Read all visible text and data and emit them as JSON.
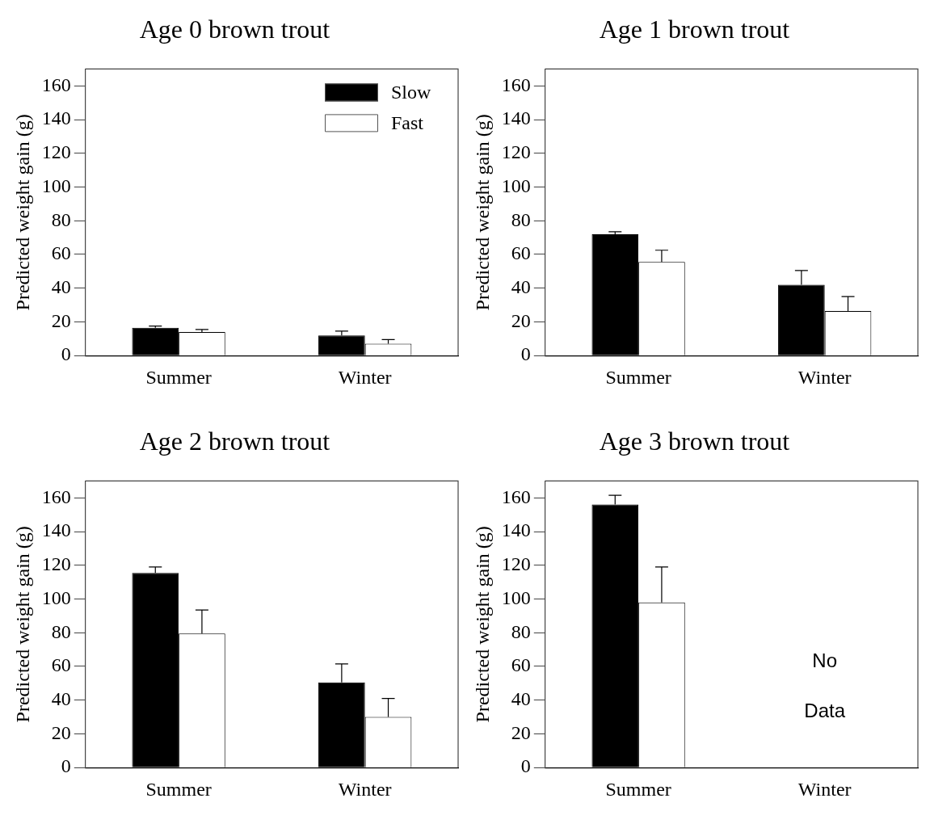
{
  "chart_data": [
    {
      "type": "bar",
      "title": "Age 0 brown trout",
      "ylabel": "Predicted weight gain (g)",
      "categories": [
        "Summer",
        "Winter"
      ],
      "ylim": [
        0,
        170
      ],
      "yticks": [
        0,
        20,
        40,
        60,
        80,
        100,
        120,
        140,
        160
      ],
      "legend": "top right",
      "series": [
        {
          "name": "Slow",
          "color": "#000000",
          "values": [
            16.5,
            12
          ],
          "errors": [
            [
              16.5,
              17.5
            ],
            [
              12,
              14.5
            ]
          ]
        },
        {
          "name": "Fast",
          "color": "#ffffff",
          "values": [
            14,
            7
          ],
          "errors": [
            [
              14,
              15.5
            ],
            [
              7,
              9.5
            ]
          ]
        }
      ]
    },
    {
      "type": "bar",
      "title": "Age 1 brown trout",
      "ylabel": "Predicted weight gain (g)",
      "categories": [
        "Summer",
        "Winter"
      ],
      "ylim": [
        0,
        170
      ],
      "yticks": [
        0,
        20,
        40,
        60,
        80,
        100,
        120,
        140,
        160
      ],
      "series": [
        {
          "color": "#000000",
          "values": [
            72,
            42
          ],
          "errors": [
            [
              72,
              73.5
            ],
            [
              42,
              50.5
            ]
          ]
        },
        {
          "color": "#ffffff",
          "values": [
            55.5,
            26.5
          ],
          "errors": [
            [
              55.5,
              62.5
            ],
            [
              26.5,
              35
            ]
          ]
        }
      ]
    },
    {
      "type": "bar",
      "title": "Age 2 brown trout",
      "ylabel": "Predicted weight gain (g)",
      "categories": [
        "Summer",
        "Winter"
      ],
      "ylim": [
        0,
        170
      ],
      "yticks": [
        0,
        20,
        40,
        60,
        80,
        100,
        120,
        140,
        160
      ],
      "series": [
        {
          "color": "#000000",
          "values": [
            115.5,
            50.5
          ],
          "errors": [
            [
              115.5,
              119
            ],
            [
              50.5,
              61.5
            ]
          ]
        },
        {
          "color": "#ffffff",
          "values": [
            79.5,
            30
          ],
          "errors": [
            [
              79.5,
              93.5
            ],
            [
              30,
              41
            ]
          ]
        }
      ]
    },
    {
      "type": "bar",
      "title": "Age 3 brown trout",
      "ylabel": "Predicted weight gain (g)",
      "categories": [
        "Summer",
        "Winter"
      ],
      "ylim": [
        0,
        170
      ],
      "yticks": [
        0,
        20,
        40,
        60,
        80,
        100,
        120,
        140,
        160
      ],
      "annotations": [
        "No Data"
      ],
      "series": [
        {
          "color": "#000000",
          "values": [
            156,
            null
          ],
          "errors": [
            [
              156,
              161.5
            ],
            null
          ]
        },
        {
          "color": "#ffffff",
          "values": [
            98,
            null
          ],
          "errors": [
            [
              98,
              119
            ],
            null
          ]
        }
      ]
    }
  ]
}
